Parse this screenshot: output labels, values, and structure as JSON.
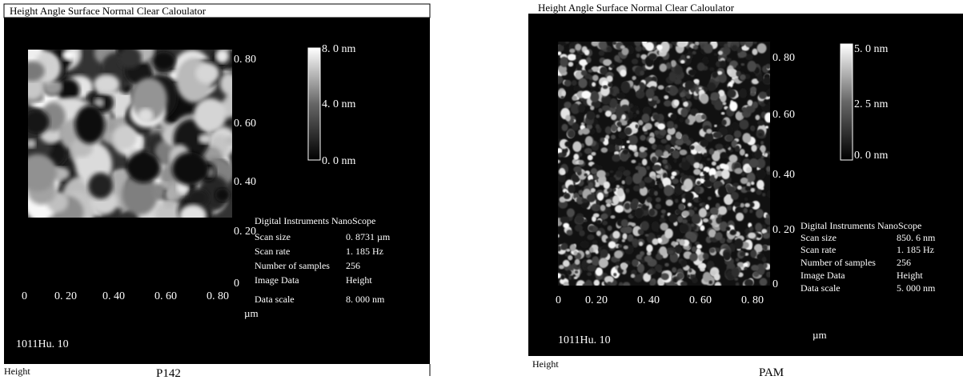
{
  "panels": [
    {
      "menu": "Height Angle Surface Normal Clear Caloulator",
      "yticks": [
        "0. 80",
        "0. 60",
        "0. 40",
        "0. 20",
        "0"
      ],
      "xticks": [
        "0",
        "0. 20",
        "0. 40",
        "0. 60",
        "0. 80"
      ],
      "unit": "µm",
      "colorbar": [
        "8. 0 nm",
        "4. 0 nm",
        "0. 0 nm"
      ],
      "info_header": "Digital Instruments NanoScope",
      "info": [
        [
          "Scan size",
          "0. 8731 µm"
        ],
        [
          "Scan rate",
          "1. 185 Hz"
        ],
        [
          "Number of samples",
          "256"
        ],
        [
          "Image Data",
          "Height"
        ],
        [
          "Data scale",
          "8. 000 nm"
        ]
      ],
      "id": "1011Hu. 10",
      "view": "Height",
      "caption": "P142"
    },
    {
      "menu": "Height Angle Surface Normal Clear Caloulator",
      "yticks": [
        "0. 80",
        "0. 60",
        "0. 40",
        "0. 20",
        "0"
      ],
      "xticks": [
        "0",
        "0. 20",
        "0. 40",
        "0. 60",
        "0. 80"
      ],
      "unit": "µm",
      "colorbar": [
        "5. 0 nm",
        "2. 5 nm",
        "0. 0 nm"
      ],
      "info_header": "Digital Instruments NanoScope",
      "info": [
        [
          "Scan size",
          "850. 6 nm"
        ],
        [
          "Scan rate",
          "1. 185 Hz"
        ],
        [
          "Number of samples",
          "256"
        ],
        [
          "Image Data",
          "Height"
        ],
        [
          "Data scale",
          "5. 000 nm"
        ]
      ],
      "id": "1011Hu. 10",
      "view": "Height",
      "caption": "PAM"
    }
  ]
}
